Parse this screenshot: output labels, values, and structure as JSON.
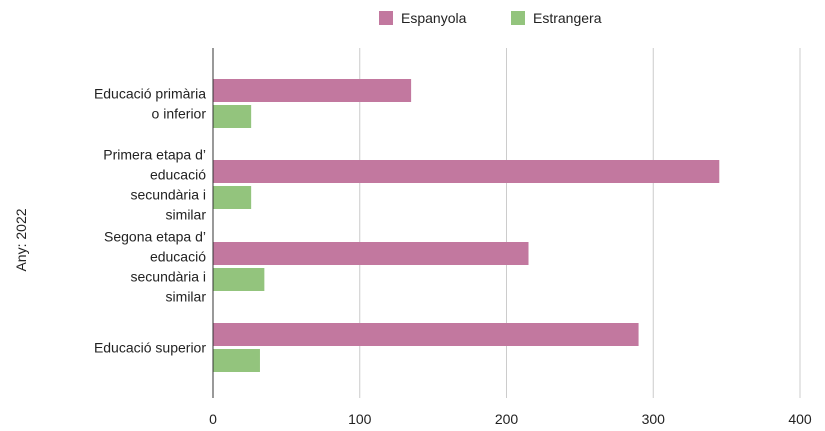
{
  "chart_data": {
    "type": "bar",
    "orientation": "horizontal",
    "categories": [
      [
        "Educació primària",
        "o inferior"
      ],
      [
        "Primera etapa d’",
        "educació",
        "secundària i",
        "similar"
      ],
      [
        "Segona etapa d’",
        "educació",
        "secundària i",
        "similar"
      ],
      [
        "Educació superior"
      ]
    ],
    "series": [
      {
        "name": "Espanyola",
        "color": "#c2789f",
        "values": [
          135,
          345,
          215,
          290
        ]
      },
      {
        "name": "Estrangera",
        "color": "#93c47d",
        "values": [
          26,
          26,
          35,
          32
        ]
      }
    ],
    "ylabel": "Any: 2022",
    "xlim": [
      0,
      400
    ],
    "xticks": [
      0,
      100,
      200,
      300,
      400
    ],
    "grid": true,
    "legend_position": "top"
  }
}
